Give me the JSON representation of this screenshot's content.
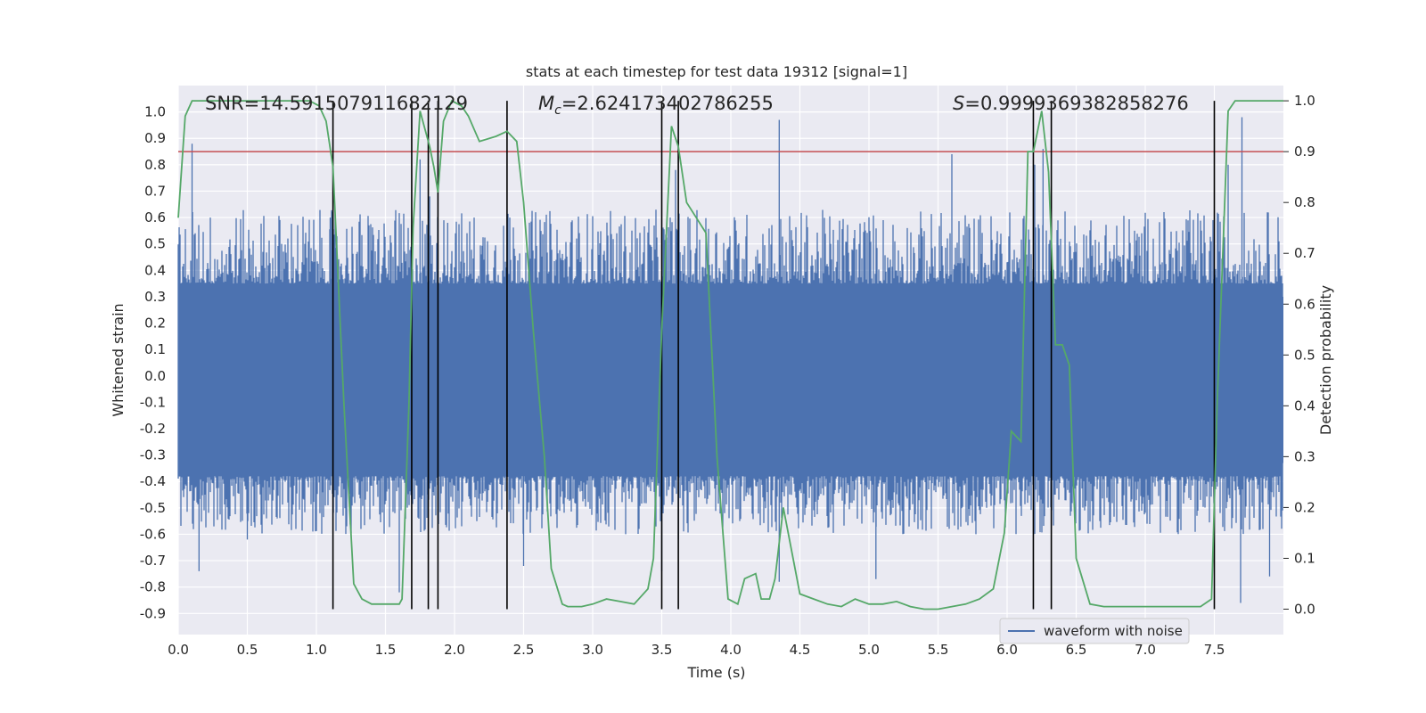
{
  "chart_data": {
    "type": "line",
    "title": "stats at each timestep for test data 19312 [signal=1]",
    "xlabel": "Time (s)",
    "ylabel": "Whitened strain",
    "ylabel_right": "Detection probability",
    "xlim": [
      0.0,
      8.0
    ],
    "ylim": [
      -0.98,
      1.1
    ],
    "ylim_right": [
      -0.05,
      1.03
    ],
    "x_ticks": [
      "0.0",
      "0.5",
      "1.0",
      "1.5",
      "2.0",
      "2.5",
      "3.0",
      "3.5",
      "4.0",
      "4.5",
      "5.0",
      "5.5",
      "6.0",
      "6.5",
      "7.0",
      "7.5"
    ],
    "y_ticks": [
      "1.0",
      "0.9",
      "0.8",
      "0.7",
      "0.6",
      "0.5",
      "0.4",
      "0.3",
      "0.2",
      "0.1",
      "0.0",
      "-0.1",
      "-0.2",
      "-0.3",
      "-0.4",
      "-0.5",
      "-0.6",
      "-0.7",
      "-0.8",
      "-0.9"
    ],
    "y_right_ticks": [
      "1.0",
      "0.9",
      "0.8",
      "0.7",
      "0.6",
      "0.5",
      "0.4",
      "0.3",
      "0.2",
      "0.1",
      "0.0"
    ],
    "annotations": {
      "snr": "SNR=14.591507911682129",
      "mc_symbol": "M",
      "mc_sub": "c",
      "mc_value": "=2.624173402786255",
      "s_symbol": "S",
      "s_value": "=0.9999369382858276"
    },
    "legend": {
      "label": "waveform with noise",
      "placement": "lower-right"
    },
    "threshold": {
      "axis": "right",
      "value": 0.9,
      "color": "#c44e52"
    },
    "event_lines_x": [
      1.12,
      1.69,
      1.81,
      1.88,
      2.38,
      3.5,
      3.62,
      6.19,
      6.32,
      7.5
    ],
    "waveform": {
      "name": "waveform with noise",
      "color": "#4c72b0",
      "dense_range": [
        -0.38,
        0.35
      ],
      "upper_peaks": [
        [
          0.1,
          0.88
        ],
        [
          1.1,
          0.6
        ],
        [
          1.75,
          0.82
        ],
        [
          1.82,
          0.68
        ],
        [
          1.95,
          0.58
        ],
        [
          2.4,
          0.6
        ],
        [
          3.6,
          0.78
        ],
        [
          4.35,
          0.97
        ],
        [
          5.6,
          0.84
        ],
        [
          6.2,
          0.8
        ],
        [
          6.26,
          0.86
        ],
        [
          7.6,
          0.8
        ],
        [
          7.7,
          0.98
        ]
      ],
      "lower_peaks": [
        [
          0.15,
          -0.74
        ],
        [
          0.5,
          -0.62
        ],
        [
          1.6,
          -0.82
        ],
        [
          2.5,
          -0.72
        ],
        [
          3.5,
          -0.74
        ],
        [
          3.62,
          -0.62
        ],
        [
          4.35,
          -0.78
        ],
        [
          5.05,
          -0.77
        ],
        [
          7.69,
          -0.86
        ],
        [
          7.9,
          -0.76
        ]
      ]
    },
    "series": [
      {
        "name": "",
        "axis": "right",
        "color": "#55a868",
        "x": [
          0.0,
          0.05,
          0.1,
          0.2,
          0.5,
          0.8,
          0.95,
          1.02,
          1.07,
          1.12,
          1.2,
          1.27,
          1.33,
          1.4,
          1.5,
          1.56,
          1.6,
          1.62,
          1.67,
          1.7,
          1.75,
          1.82,
          1.85,
          1.88,
          1.92,
          1.98,
          2.05,
          2.1,
          2.18,
          2.3,
          2.38,
          2.45,
          2.5,
          2.57,
          2.65,
          2.7,
          2.78,
          2.82,
          2.92,
          3.0,
          3.1,
          3.2,
          3.3,
          3.4,
          3.44,
          3.5,
          3.57,
          3.62,
          3.68,
          3.75,
          3.82,
          3.9,
          3.98,
          4.05,
          4.1,
          4.18,
          4.22,
          4.28,
          4.32,
          4.38,
          4.5,
          4.6,
          4.7,
          4.8,
          4.9,
          5.0,
          5.1,
          5.2,
          5.3,
          5.4,
          5.5,
          5.6,
          5.7,
          5.8,
          5.9,
          5.98,
          6.03,
          6.1,
          6.15,
          6.19,
          6.25,
          6.3,
          6.35,
          6.4,
          6.45,
          6.5,
          6.6,
          6.7,
          6.8,
          7.0,
          7.2,
          7.4,
          7.48,
          7.52,
          7.6,
          7.65,
          8.0
        ],
        "y": [
          0.77,
          0.97,
          1.0,
          1.0,
          1.0,
          1.0,
          1.0,
          0.99,
          0.96,
          0.87,
          0.4,
          0.05,
          0.02,
          0.01,
          0.01,
          0.01,
          0.01,
          0.02,
          0.4,
          0.75,
          0.98,
          0.91,
          0.87,
          0.82,
          0.96,
          1.0,
          0.99,
          0.97,
          0.92,
          0.93,
          0.94,
          0.92,
          0.8,
          0.55,
          0.3,
          0.08,
          0.01,
          0.005,
          0.005,
          0.01,
          0.02,
          0.015,
          0.01,
          0.04,
          0.1,
          0.55,
          0.95,
          0.91,
          0.8,
          0.77,
          0.74,
          0.3,
          0.02,
          0.01,
          0.06,
          0.07,
          0.02,
          0.02,
          0.06,
          0.2,
          0.03,
          0.02,
          0.01,
          0.005,
          0.02,
          0.01,
          0.01,
          0.015,
          0.005,
          0.0,
          0.0,
          0.005,
          0.01,
          0.02,
          0.04,
          0.15,
          0.35,
          0.33,
          0.9,
          0.9,
          0.98,
          0.86,
          0.52,
          0.52,
          0.48,
          0.1,
          0.01,
          0.005,
          0.005,
          0.005,
          0.005,
          0.005,
          0.02,
          0.4,
          0.98,
          1.0,
          1.0
        ]
      }
    ],
    "grid": true
  }
}
